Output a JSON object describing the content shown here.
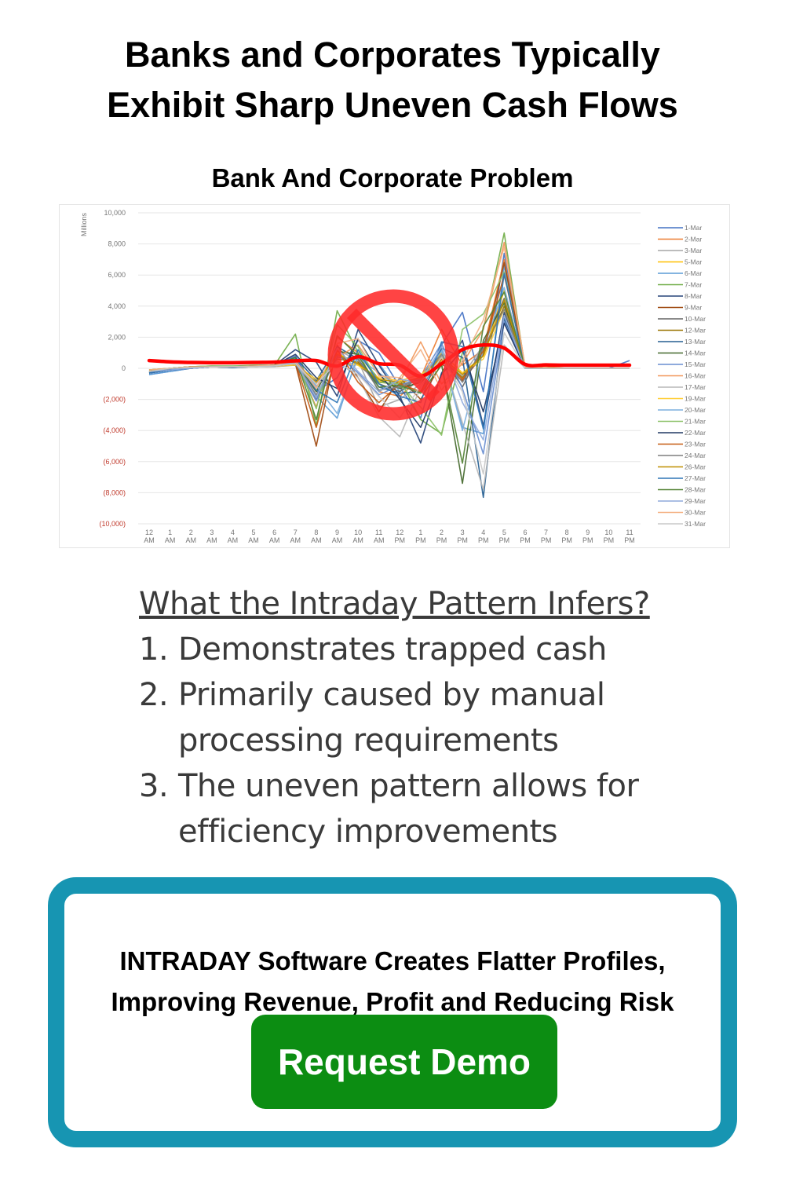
{
  "header": {
    "title_line1": "Banks and Corporates Typically",
    "title_line2": "Exhibit Sharp Uneven Cash Flows"
  },
  "chart_title": "Bank And Corporate Problem",
  "chart_data": {
    "type": "line",
    "title": "",
    "ylabel": "Millions",
    "xlabel": "",
    "ylim": [
      -10000,
      10000
    ],
    "y_ticks": [
      "10,000",
      "8,000",
      "6,000",
      "4,000",
      "2,000",
      "0",
      "(2,000)",
      "(4,000)",
      "(6,000)",
      "(8,000)",
      "(10,000)"
    ],
    "x_ticks": [
      [
        "12",
        "AM"
      ],
      [
        "1",
        "AM"
      ],
      [
        "2",
        "AM"
      ],
      [
        "3",
        "AM"
      ],
      [
        "4",
        "AM"
      ],
      [
        "5",
        "AM"
      ],
      [
        "6",
        "AM"
      ],
      [
        "7",
        "AM"
      ],
      [
        "8",
        "AM"
      ],
      [
        "9",
        "AM"
      ],
      [
        "10",
        "AM"
      ],
      [
        "11",
        "AM"
      ],
      [
        "12",
        "PM"
      ],
      [
        "1",
        "PM"
      ],
      [
        "2",
        "PM"
      ],
      [
        "3",
        "PM"
      ],
      [
        "4",
        "PM"
      ],
      [
        "5",
        "PM"
      ],
      [
        "6",
        "PM"
      ],
      [
        "7",
        "PM"
      ],
      [
        "8",
        "PM"
      ],
      [
        "9",
        "PM"
      ],
      [
        "10",
        "PM"
      ],
      [
        "11",
        "PM"
      ]
    ],
    "grid": true,
    "legend_position": "right",
    "series": [
      {
        "name": "1-Mar",
        "color": "#4472c4",
        "values": [
          -400,
          -200,
          0,
          100,
          50,
          100,
          150,
          800,
          -1500,
          -600,
          1800,
          1000,
          -1200,
          -3200,
          1500,
          3600,
          -1500,
          7400,
          0,
          0,
          0,
          0,
          0,
          500
        ]
      },
      {
        "name": "2-Mar",
        "color": "#ed7d31",
        "values": [
          -200,
          0,
          100,
          150,
          100,
          150,
          200,
          500,
          -2500,
          2000,
          1000,
          -1500,
          -1800,
          -600,
          2500,
          200,
          1200,
          7000,
          100,
          100,
          0,
          0,
          0,
          0
        ]
      },
      {
        "name": "3-Mar",
        "color": "#a5a5a5",
        "values": [
          -300,
          -100,
          0,
          100,
          100,
          100,
          100,
          200,
          -1500,
          1200,
          500,
          -2500,
          -2000,
          -1000,
          500,
          -500,
          1500,
          4300,
          0,
          0,
          0,
          0,
          0,
          0
        ]
      },
      {
        "name": "5-Mar",
        "color": "#ffc000",
        "values": [
          -200,
          0,
          50,
          100,
          100,
          100,
          150,
          300,
          -1000,
          1000,
          200,
          -800,
          -1200,
          -500,
          1000,
          -300,
          800,
          5000,
          0,
          0,
          0,
          0,
          0,
          0
        ]
      },
      {
        "name": "6-Mar",
        "color": "#5b9bd5",
        "values": [
          -400,
          -200,
          0,
          100,
          50,
          100,
          150,
          600,
          -1800,
          -3200,
          900,
          300,
          -1500,
          -800,
          1200,
          -3800,
          -4200,
          6600,
          100,
          0,
          0,
          0,
          0,
          0
        ]
      },
      {
        "name": "7-Mar",
        "color": "#70ad47",
        "values": [
          -200,
          0,
          100,
          150,
          150,
          200,
          200,
          2200,
          -3700,
          3700,
          1000,
          -1500,
          -700,
          -3300,
          -4200,
          1000,
          2500,
          8700,
          0,
          0,
          0,
          0,
          0,
          0
        ]
      },
      {
        "name": "8-Mar",
        "color": "#264478",
        "values": [
          -200,
          -100,
          0,
          100,
          100,
          150,
          200,
          1200,
          400,
          -1800,
          2500,
          200,
          -1800,
          -4800,
          -300,
          1800,
          -3700,
          3600,
          0,
          0,
          0,
          0,
          0,
          0
        ]
      },
      {
        "name": "9-Mar",
        "color": "#9e480e",
        "values": [
          -200,
          0,
          50,
          100,
          100,
          150,
          150,
          300,
          -5000,
          1500,
          -600,
          -2800,
          -600,
          -2000,
          300,
          -800,
          900,
          6800,
          100,
          0,
          0,
          0,
          0,
          0
        ]
      },
      {
        "name": "10-Mar",
        "color": "#636363",
        "values": [
          -100,
          0,
          100,
          100,
          100,
          100,
          150,
          200,
          -2000,
          800,
          300,
          -1000,
          -1500,
          -500,
          800,
          -1200,
          1500,
          4500,
          0,
          0,
          0,
          0,
          0,
          0
        ]
      },
      {
        "name": "12-Mar",
        "color": "#997300",
        "values": [
          -200,
          0,
          50,
          100,
          50,
          100,
          150,
          400,
          -1200,
          600,
          400,
          -900,
          -1000,
          -800,
          600,
          -600,
          1000,
          4000,
          0,
          0,
          0,
          0,
          0,
          0
        ]
      },
      {
        "name": "13-Mar",
        "color": "#255e91",
        "values": [
          -300,
          -100,
          0,
          100,
          100,
          150,
          150,
          700,
          -800,
          1400,
          600,
          -1200,
          -1600,
          -1500,
          1300,
          700,
          -8300,
          3200,
          0,
          0,
          0,
          0,
          0,
          0
        ]
      },
      {
        "name": "14-Mar",
        "color": "#43682b",
        "values": [
          -200,
          0,
          100,
          100,
          100,
          150,
          200,
          500,
          -1500,
          1100,
          900,
          -700,
          -1300,
          -900,
          300,
          -7400,
          1800,
          4200,
          0,
          0,
          0,
          0,
          0,
          0
        ]
      },
      {
        "name": "15-Mar",
        "color": "#698ed0",
        "values": [
          -300,
          -100,
          0,
          100,
          50,
          100,
          150,
          300,
          -2100,
          900,
          -300,
          -1700,
          -1100,
          -600,
          1600,
          -1300,
          -5500,
          3000,
          0,
          0,
          0,
          0,
          0,
          0
        ]
      },
      {
        "name": "16-Mar",
        "color": "#f1975a",
        "values": [
          -200,
          0,
          100,
          100,
          100,
          150,
          150,
          500,
          -1000,
          700,
          1500,
          -400,
          -900,
          1700,
          -1000,
          300,
          2500,
          8100,
          100,
          0,
          0,
          0,
          0,
          0
        ]
      },
      {
        "name": "17-Mar",
        "color": "#b7b7b7",
        "values": [
          -200,
          0,
          50,
          100,
          100,
          100,
          100,
          300,
          -1200,
          500,
          -600,
          -3100,
          -4400,
          -1200,
          900,
          -3500,
          -7800,
          1500,
          0,
          0,
          0,
          0,
          0,
          0
        ]
      },
      {
        "name": "19-Mar",
        "color": "#ffcd33",
        "values": [
          -100,
          0,
          100,
          100,
          100,
          100,
          150,
          200,
          -700,
          400,
          200,
          -600,
          -800,
          -400,
          500,
          -300,
          600,
          3800,
          0,
          0,
          0,
          0,
          0,
          0
        ]
      },
      {
        "name": "20-Mar",
        "color": "#7cafdd",
        "values": [
          -200,
          0,
          50,
          100,
          100,
          150,
          150,
          400,
          -1100,
          -2900,
          700,
          -300,
          -1200,
          -700,
          1100,
          -4000,
          1200,
          5200,
          0,
          0,
          0,
          0,
          0,
          0
        ]
      },
      {
        "name": "21-Mar",
        "color": "#8cc168",
        "values": [
          -100,
          0,
          100,
          150,
          150,
          150,
          200,
          600,
          -2600,
          2800,
          1400,
          -900,
          -1000,
          -2500,
          -4300,
          2500,
          3500,
          6200,
          0,
          0,
          0,
          0,
          0,
          0
        ]
      },
      {
        "name": "22-Mar",
        "color": "#203864",
        "values": [
          -300,
          -100,
          0,
          100,
          100,
          150,
          200,
          900,
          -600,
          -1300,
          1900,
          -300,
          -2000,
          -3800,
          -400,
          1200,
          -2800,
          2900,
          0,
          0,
          0,
          0,
          0,
          0
        ]
      },
      {
        "name": "23-Mar",
        "color": "#c55a11",
        "values": [
          -200,
          0,
          100,
          100,
          100,
          150,
          150,
          400,
          -3800,
          1200,
          -900,
          -2200,
          -1000,
          -1500,
          600,
          -700,
          1100,
          6000,
          100,
          0,
          0,
          0,
          0,
          0
        ]
      },
      {
        "name": "24-Mar",
        "color": "#7f7f7f",
        "values": [
          -200,
          0,
          50,
          100,
          100,
          100,
          150,
          300,
          -1700,
          700,
          600,
          -1400,
          -1200,
          -700,
          900,
          -900,
          1300,
          3800,
          0,
          0,
          0,
          0,
          0,
          0
        ]
      },
      {
        "name": "26-Mar",
        "color": "#bf9000",
        "values": [
          -100,
          0,
          100,
          100,
          100,
          100,
          150,
          300,
          -900,
          900,
          300,
          -700,
          -900,
          -600,
          700,
          -400,
          800,
          4400,
          0,
          0,
          0,
          0,
          0,
          0
        ]
      },
      {
        "name": "27-Mar",
        "color": "#2e75b6",
        "values": [
          -300,
          -100,
          0,
          100,
          50,
          150,
          150,
          600,
          -1400,
          -2200,
          1200,
          -1000,
          -1800,
          -2200,
          1700,
          1400,
          -3900,
          6100,
          0,
          0,
          0,
          0,
          0,
          0
        ]
      },
      {
        "name": "28-Mar",
        "color": "#548235",
        "values": [
          -200,
          0,
          100,
          100,
          100,
          150,
          200,
          700,
          -3300,
          2100,
          800,
          -1200,
          -1100,
          -1600,
          200,
          -6100,
          2700,
          4900,
          0,
          0,
          0,
          0,
          0,
          0
        ]
      },
      {
        "name": "29-Mar",
        "color": "#8faadc",
        "values": [
          -200,
          -100,
          0,
          100,
          100,
          100,
          150,
          400,
          -1900,
          1300,
          -200,
          -1500,
          -700,
          -900,
          1400,
          -2200,
          -4600,
          3400,
          0,
          0,
          0,
          0,
          0,
          0
        ]
      },
      {
        "name": "30-Mar",
        "color": "#f4b183",
        "values": [
          -100,
          0,
          100,
          100,
          100,
          150,
          200,
          500,
          -1300,
          1600,
          1900,
          -500,
          -600,
          1200,
          -1400,
          500,
          3100,
          7800,
          100,
          0,
          0,
          0,
          0,
          0
        ]
      },
      {
        "name": "31-Mar",
        "color": "#c9c9c9",
        "values": [
          -200,
          0,
          50,
          100,
          100,
          100,
          150,
          300,
          -1000,
          400,
          -400,
          -1800,
          -3200,
          -1100,
          700,
          -1500,
          -6800,
          2300,
          0,
          0,
          0,
          0,
          0,
          0
        ]
      }
    ],
    "overlay_curve": {
      "color": "#ff0000",
      "values": [
        500,
        420,
        380,
        360,
        360,
        380,
        400,
        480,
        500,
        150,
        750,
        300,
        200,
        -500,
        300,
        1200,
        1500,
        1300,
        250,
        220,
        200,
        200,
        200,
        200
      ]
    },
    "prohibition_sign_color": "#ff2a2a"
  },
  "infer": {
    "title": "What the Intraday Pattern Infers?",
    "items": [
      {
        "num": "1.",
        "line1": "Demonstrates trapped cash",
        "line2": ""
      },
      {
        "num": "2.",
        "line1": "Primarily caused by manual",
        "line2": "processing requirements"
      },
      {
        "num": "3.",
        "line1": "The uneven pattern allows for",
        "line2": "efficiency improvements"
      }
    ]
  },
  "cta": {
    "line1": "INTRADAY Software Creates Flatter Profiles,",
    "line2": "Improving Revenue, Profit and Reducing Risk",
    "button_label": "Request Demo",
    "border_color": "#1795b2",
    "button_color": "#0c8d12"
  }
}
